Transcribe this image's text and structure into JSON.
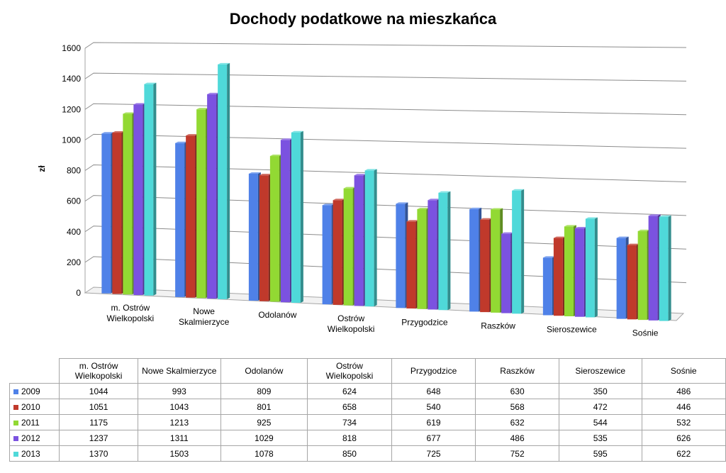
{
  "chart_data": {
    "type": "bar",
    "title": "Dochody podatkowe na mieszkańca",
    "ylabel": "zł",
    "xlabel": "",
    "ylim": [
      0,
      1600
    ],
    "yticks": [
      "0",
      "200",
      "400",
      "600",
      "800",
      "1000",
      "1200",
      "1400",
      "1600"
    ],
    "grid": true,
    "legend": "table below chart",
    "categories": [
      "m. Ostrów Wielkopolski",
      "Nowe Skalmierzyce",
      "Odolanów",
      "Ostrów Wielkopolski",
      "Przygodzice",
      "Raszków",
      "Sieroszewice",
      "Sośnie"
    ],
    "category_lines": [
      [
        "m. Ostrów",
        "Wielkopolski"
      ],
      [
        "Nowe",
        "Skalmierzyce"
      ],
      [
        "Odolanów"
      ],
      [
        "Ostrów",
        "Wielkopolski"
      ],
      [
        "Przygodzice"
      ],
      [
        "Raszków"
      ],
      [
        "Sieroszewice"
      ],
      [
        "Sośnie"
      ]
    ],
    "table_header": [
      [
        "m. Ostrów",
        "Wielkopolski"
      ],
      [
        "Nowe Skalmierzyce"
      ],
      [
        "Odolanów"
      ],
      [
        "Ostrów",
        "Wielkopolski"
      ],
      [
        "Przygodzice"
      ],
      [
        "Raszków"
      ],
      [
        "Sieroszewice"
      ],
      [
        "Sośnie"
      ]
    ],
    "series": [
      {
        "name": "2009",
        "color": "#4f81e8",
        "values": [
          1044,
          993,
          809,
          624,
          648,
          630,
          350,
          486
        ]
      },
      {
        "name": "2010",
        "color": "#c0392b",
        "values": [
          1051,
          1043,
          801,
          658,
          540,
          568,
          472,
          446
        ]
      },
      {
        "name": "2011",
        "color": "#92d933",
        "values": [
          1175,
          1213,
          925,
          734,
          619,
          632,
          544,
          532
        ]
      },
      {
        "name": "2012",
        "color": "#7b52e0",
        "values": [
          1237,
          1311,
          1029,
          818,
          677,
          486,
          535,
          626
        ]
      },
      {
        "name": "2013",
        "color": "#4fd9d9",
        "values": [
          1370,
          1503,
          1078,
          850,
          725,
          752,
          595,
          622
        ]
      }
    ]
  }
}
